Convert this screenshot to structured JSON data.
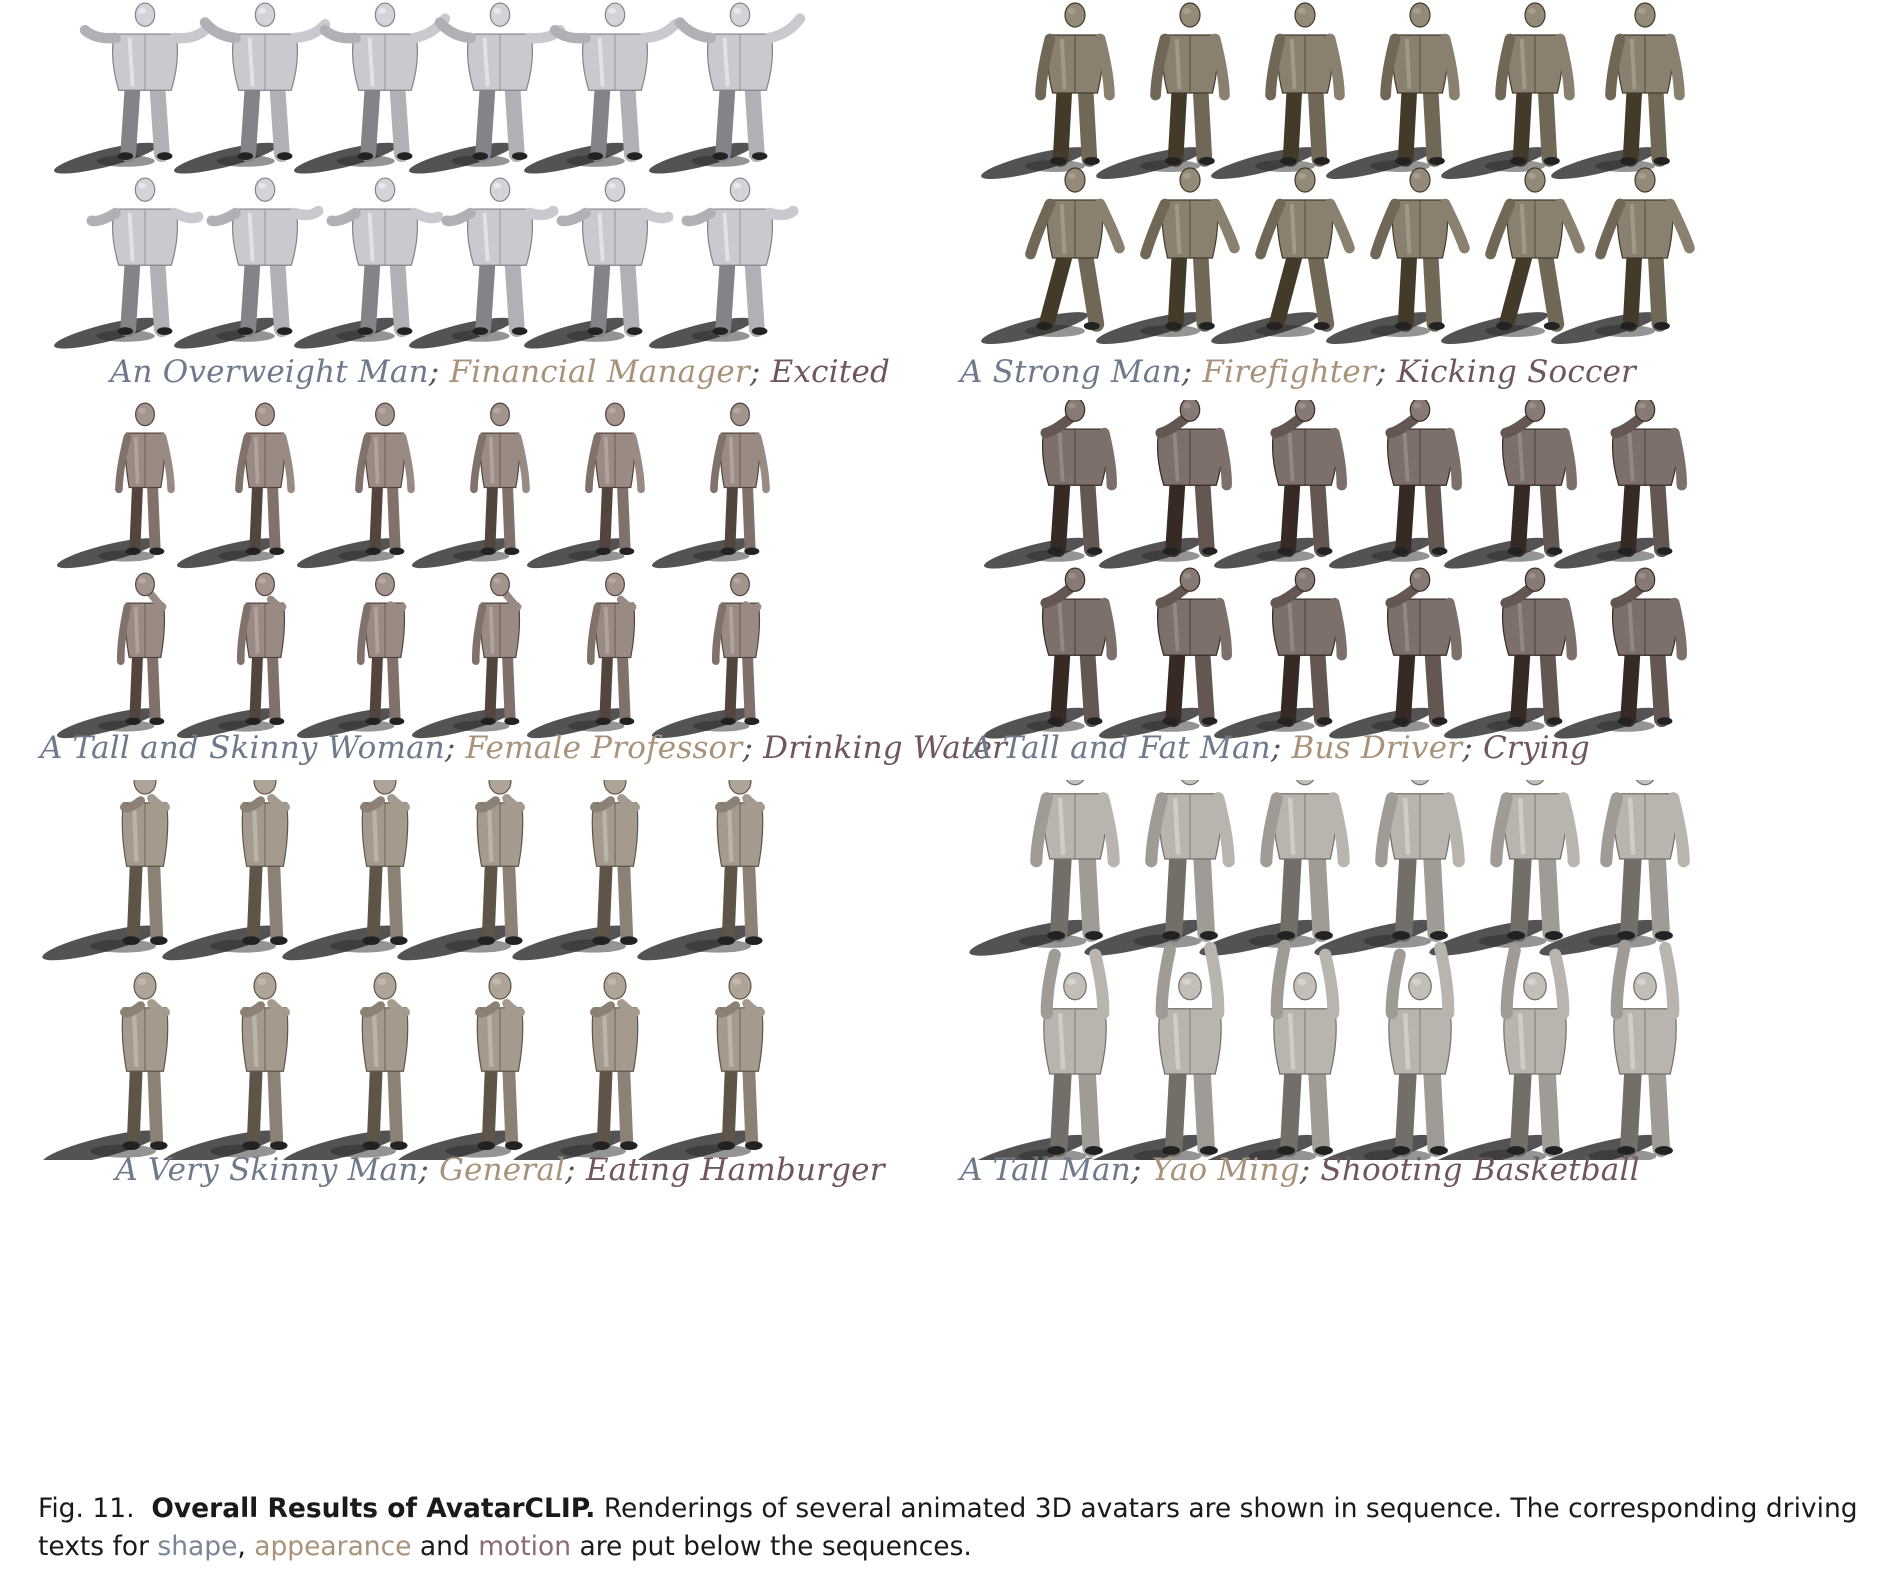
{
  "panels": [
    {
      "id": "overweight-man",
      "shape": "An Overweight Man",
      "appearance": "Financial Manager",
      "motion": "Excited",
      "tone": "#c9c9cf",
      "build": "fat",
      "pose_top": "tpose",
      "pose_bottom": "arms-wide"
    },
    {
      "id": "strong-man",
      "shape": "A Strong Man",
      "appearance": "Firefighter",
      "motion": "Kicking Soccer",
      "tone": "#8a8070",
      "build": "strong",
      "pose_top": "stand",
      "pose_bottom": "kick"
    },
    {
      "id": "skinny-woman",
      "shape": "A Tall and Skinny Woman",
      "appearance": "Female Professor",
      "motion": "Drinking Water",
      "tone": "#9a8a84",
      "build": "skinny",
      "pose_top": "stand",
      "pose_bottom": "drink"
    },
    {
      "id": "fat-man",
      "shape": "A Tall and Fat Man",
      "appearance": "Bus Driver",
      "motion": "Crying",
      "tone": "#7d6f6a",
      "build": "fat",
      "pose_top": "hand-face",
      "pose_bottom": "hand-face"
    },
    {
      "id": "skinny-man",
      "shape": "A Very Skinny Man",
      "appearance": "General",
      "motion": "Eating Hamburger",
      "tone": "#a59a8e",
      "build": "skinny",
      "pose_top": "eat",
      "pose_bottom": "eat"
    },
    {
      "id": "tall-man",
      "shape": "A Tall Man",
      "appearance": "Yao Ming",
      "motion": "Shooting Basketball",
      "tone": "#b9b4ae",
      "build": "strong",
      "pose_top": "stand",
      "pose_bottom": "shoot"
    }
  ],
  "figure_caption": {
    "label": "Fig. 11.",
    "title": "Overall Results of AvatarCLIP.",
    "text_before": "Renderings of several animated 3D avatars are shown in sequence. The corresponding driving texts for",
    "kw_shape": "shape",
    "comma": ",",
    "kw_appearance": "appearance",
    "and": "and",
    "kw_motion": "motion",
    "text_after": "are put below the sequences."
  },
  "separator": "; "
}
